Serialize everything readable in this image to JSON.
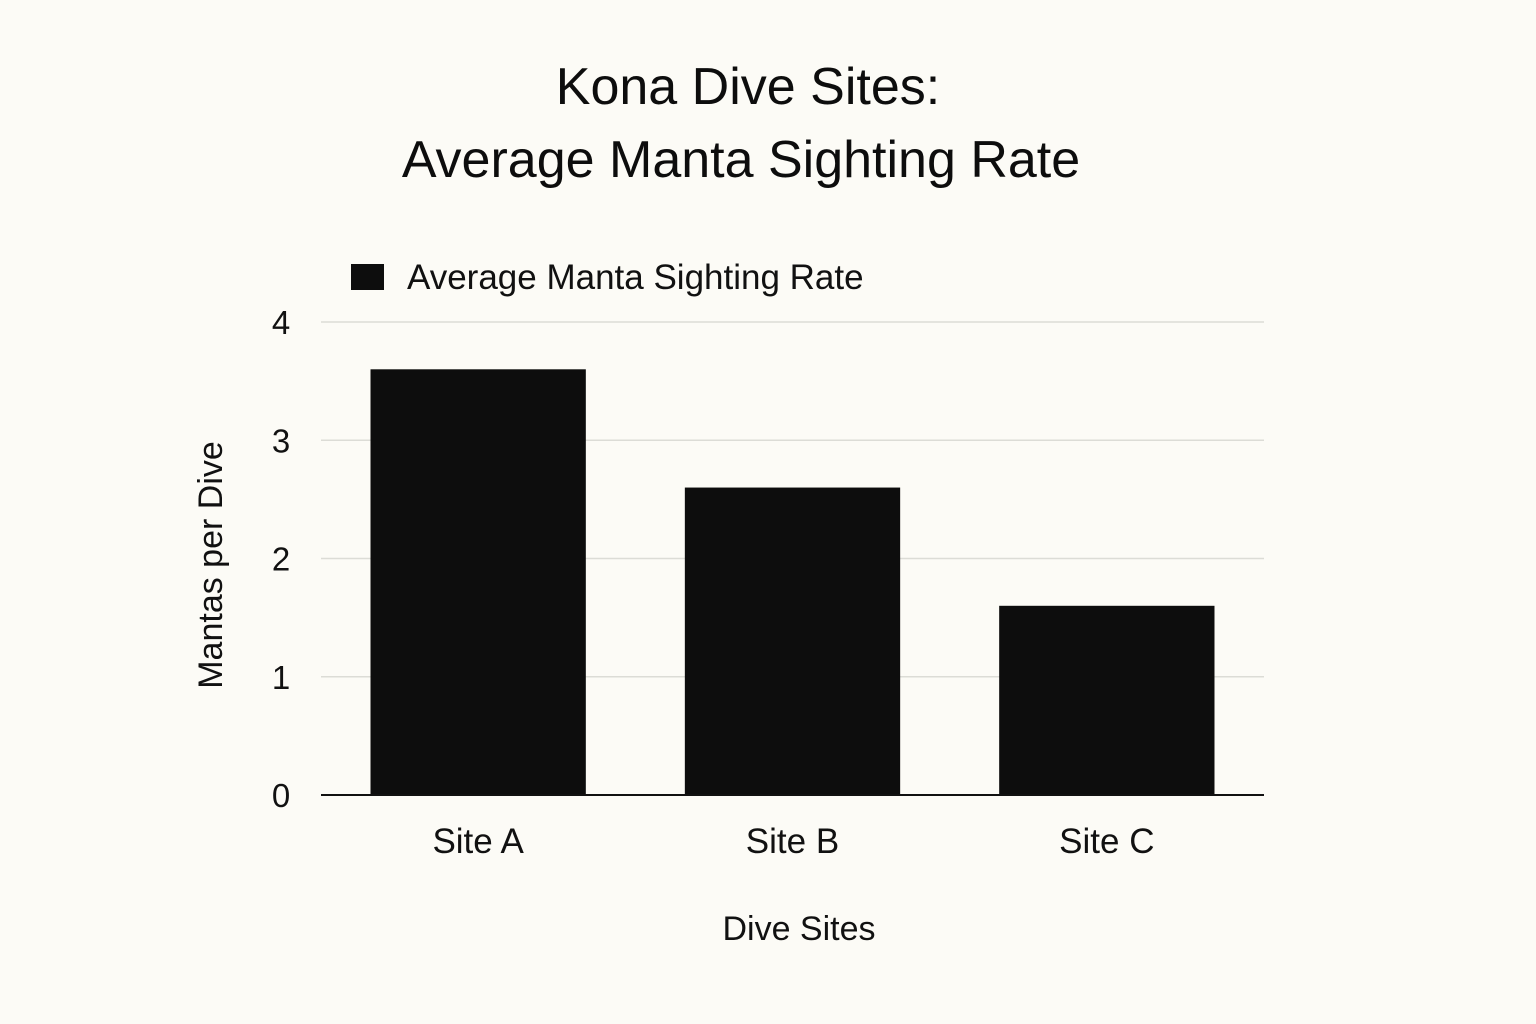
{
  "chart_data": {
    "type": "bar",
    "title_lines": [
      "Kona Dive Sites:",
      "Average Manta Sighting Rate"
    ],
    "xlabel": "Dive Sites",
    "ylabel": "Mantas per Dive",
    "categories": [
      "Site A",
      "Site B",
      "Site C"
    ],
    "series": [
      {
        "name": "Average Manta Sighting Rate",
        "values": [
          3.6,
          2.6,
          1.6
        ]
      }
    ],
    "ylim": [
      0,
      4
    ],
    "yticks": [
      "0",
      "1",
      "2",
      "3",
      "4"
    ],
    "grid": true,
    "legend_position": "top-left",
    "colors": {
      "bar": "#0d0d0d",
      "grid": "#dcdcd6",
      "axis": "#111111",
      "background": "#fcfbf6"
    }
  }
}
